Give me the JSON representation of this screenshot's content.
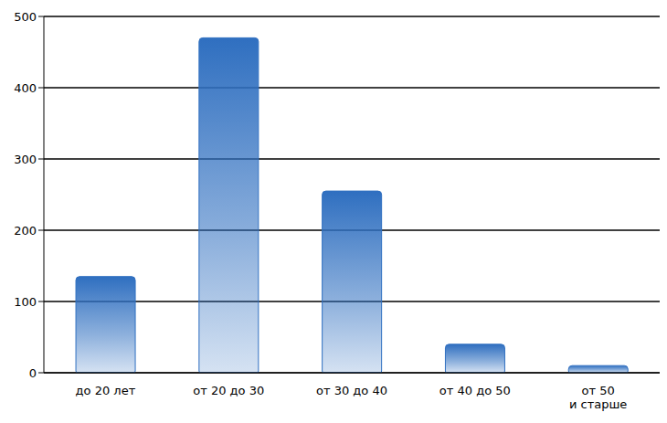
{
  "chart_data": {
    "type": "bar",
    "categories": [
      "до 20 лет",
      "от 20 до 30",
      "от 30 до 40",
      "от 40 до 50",
      "от 50 и старше"
    ],
    "values": [
      135,
      470,
      255,
      40,
      10
    ],
    "color": "#2f6fc0",
    "ylim": [
      0,
      500
    ],
    "yticks": [
      0,
      100,
      200,
      300,
      400,
      500
    ],
    "grid": true
  }
}
